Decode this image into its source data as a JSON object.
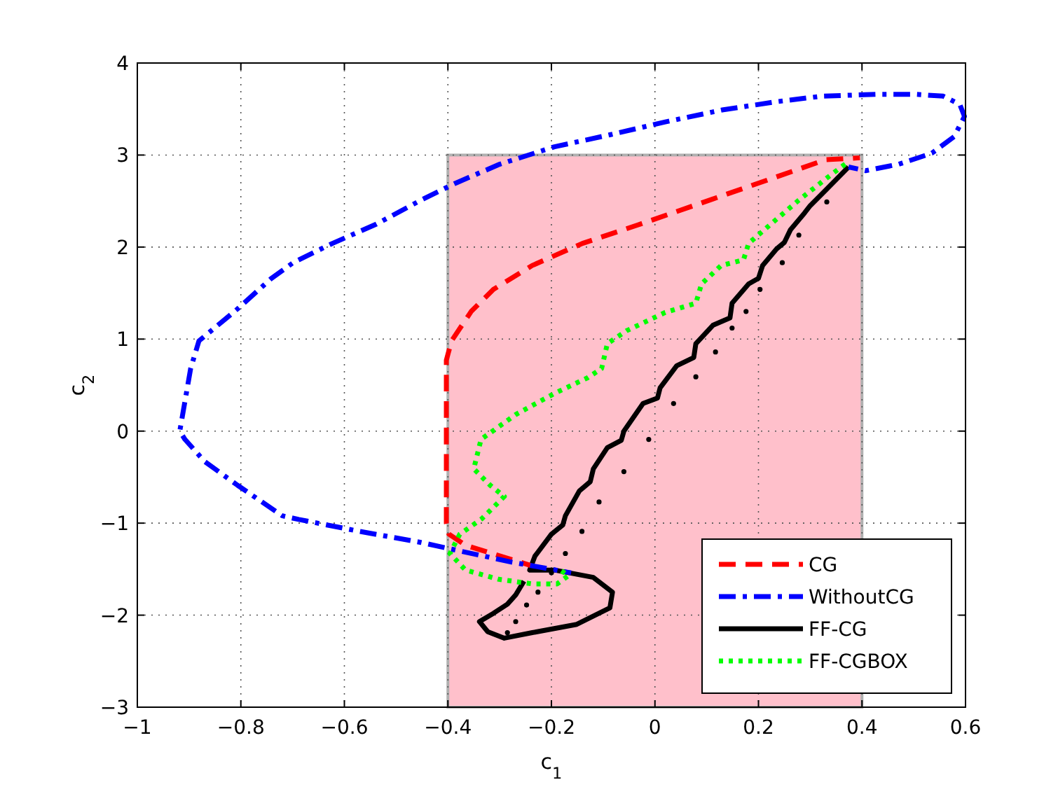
{
  "chart_data": {
    "type": "line",
    "xlabel": "c$_{1}$",
    "ylabel": "c$_{2}$",
    "xlim": [
      -1,
      0.6
    ],
    "ylim": [
      -3,
      4
    ],
    "xticks": [
      -1,
      -0.8,
      -0.6,
      -0.4,
      -0.2,
      0,
      0.2,
      0.4,
      0.6
    ],
    "yticks": [
      -3,
      -2,
      -1,
      0,
      1,
      2,
      3,
      4
    ],
    "grid": true,
    "legend": "bottom right",
    "series": [
      {
        "type": "area",
        "color": "#ffc0cb",
        "x": [
          -0.4,
          0.4
        ],
        "values": [
          3,
          3
        ]
      },
      {
        "type": "area",
        "color": "#ffc0cb",
        "x": [
          -0.4,
          0.4
        ],
        "values": [
          -3,
          -3
        ]
      },
      {
        "name": "CG",
        "color": "#ff0000",
        "line_style": "dashed",
        "x": [
          0.396,
          0.33,
          0.213,
          0.085,
          -0.033,
          -0.14,
          -0.237,
          -0.312,
          -0.355,
          -0.393,
          -0.403,
          -0.403,
          -0.398,
          -0.366,
          -0.24
        ],
        "values": [
          2.97,
          2.95,
          2.72,
          2.47,
          2.24,
          2.04,
          1.8,
          1.54,
          1.3,
          0.98,
          0.77,
          -1.0,
          -1.12,
          -1.24,
          -1.46
        ]
      },
      {
        "name": "WithoutCG",
        "color": "#0000ff",
        "line_style": "dashdot",
        "x": [
          0.374,
          0.407,
          0.471,
          0.535,
          0.578,
          0.598,
          0.589,
          0.557,
          0.503,
          0.428,
          0.323,
          0.235,
          0.13,
          0.02,
          -0.087,
          -0.194,
          -0.3,
          -0.387,
          -0.452,
          -0.538,
          -0.623,
          -0.699,
          -0.741,
          -0.806,
          -0.881,
          -0.897,
          -0.918,
          -0.908,
          -0.87,
          -0.806,
          -0.72,
          -0.688,
          -0.57,
          -0.452,
          -0.387,
          -0.28,
          -0.162
        ],
        "values": [
          2.87,
          2.83,
          2.9,
          3.02,
          3.2,
          3.42,
          3.55,
          3.64,
          3.66,
          3.66,
          3.64,
          3.58,
          3.49,
          3.36,
          3.22,
          3.09,
          2.9,
          2.69,
          2.51,
          2.25,
          2.04,
          1.83,
          1.66,
          1.33,
          0.98,
          0.68,
          0.0,
          -0.09,
          -0.33,
          -0.59,
          -0.92,
          -0.96,
          -1.09,
          -1.21,
          -1.29,
          -1.42,
          -1.54
        ]
      },
      {
        "name": "FF-CG",
        "color": "#000000",
        "line_style": "solid",
        "x": [
          0.374,
          0.332,
          0.3,
          0.289,
          0.262,
          0.25,
          0.235,
          0.208,
          0.2,
          0.181,
          0.149,
          0.145,
          0.112,
          0.079,
          0.075,
          0.042,
          0.01,
          0.005,
          -0.023,
          -0.06,
          -0.065,
          -0.092,
          -0.119,
          -0.125,
          -0.146,
          -0.173,
          -0.178,
          -0.2,
          -0.232,
          -0.242,
          -0.194,
          -0.119,
          -0.082,
          -0.087,
          -0.151,
          -0.237,
          -0.291,
          -0.323,
          -0.339,
          -0.312,
          -0.285,
          -0.269,
          -0.253
        ],
        "values": [
          2.87,
          2.63,
          2.45,
          2.37,
          2.19,
          2.05,
          1.98,
          1.8,
          1.66,
          1.6,
          1.39,
          1.23,
          1.15,
          0.95,
          0.8,
          0.71,
          0.47,
          0.36,
          0.3,
          0.0,
          -0.1,
          -0.18,
          -0.41,
          -0.55,
          -0.65,
          -0.92,
          -1.02,
          -1.12,
          -1.36,
          -1.51,
          -1.51,
          -1.59,
          -1.75,
          -1.92,
          -2.1,
          -2.19,
          -2.25,
          -2.18,
          -2.07,
          -1.98,
          -1.88,
          -1.78,
          -1.63
        ]
      },
      {
        "name": "FF-CGBOX",
        "color": "#00ff00",
        "line_style": "dotted",
        "x": [
          0.374,
          0.332,
          0.278,
          0.224,
          0.181,
          0.171,
          0.128,
          0.09,
          0.079,
          0.02,
          -0.055,
          -0.092,
          -0.103,
          -0.13,
          -0.194,
          -0.269,
          -0.336,
          -0.35,
          -0.318,
          -0.291,
          -0.334,
          -0.377,
          -0.396,
          -0.366,
          -0.302,
          -0.237,
          -0.189,
          -0.167,
          -0.183
        ],
        "values": [
          2.93,
          2.75,
          2.51,
          2.25,
          2.04,
          1.86,
          1.8,
          1.6,
          1.39,
          1.29,
          1.09,
          0.95,
          0.68,
          0.58,
          0.41,
          0.18,
          -0.09,
          -0.41,
          -0.59,
          -0.71,
          -0.95,
          -1.12,
          -1.33,
          -1.51,
          -1.61,
          -1.66,
          -1.66,
          -1.57,
          -1.51
        ]
      },
      {
        "type": "scatter",
        "color": "#000000",
        "marker": "circle",
        "x": [
          0.332,
          0.278,
          0.246,
          0.203,
          0.176,
          0.149,
          0.117,
          0.079,
          0.036,
          -0.012,
          -0.06,
          -0.108,
          -0.141,
          -0.173,
          -0.2,
          -0.226,
          -0.248,
          -0.269,
          -0.285
        ],
        "values": [
          2.49,
          2.13,
          1.83,
          1.54,
          1.3,
          1.12,
          0.86,
          0.59,
          0.3,
          -0.09,
          -0.44,
          -0.77,
          -1.09,
          -1.33,
          -1.54,
          -1.75,
          -1.89,
          -2.07,
          -2.19
        ]
      }
    ]
  }
}
